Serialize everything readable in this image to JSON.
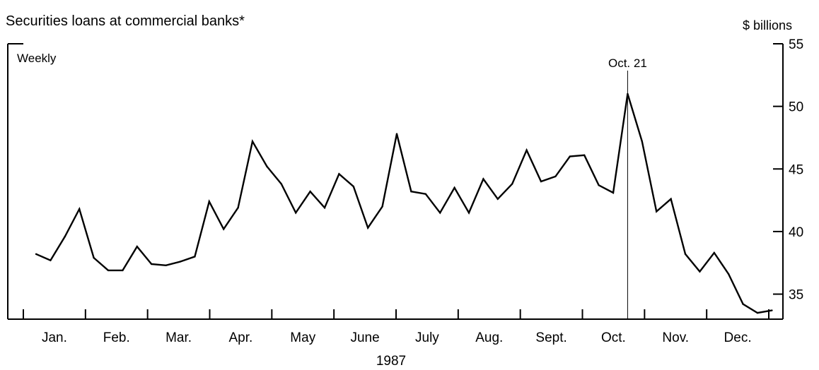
{
  "chart_data": {
    "type": "line",
    "title": "Securities loans at commercial banks*",
    "unit_label": "$ billions",
    "frequency_label": "Weekly",
    "xlabel": "1987",
    "ylabel": "",
    "ylim": [
      33,
      55
    ],
    "yticks": [
      35,
      40,
      45,
      50,
      55
    ],
    "months": [
      "Jan.",
      "Feb.",
      "Mar.",
      "Apr.",
      "May",
      "June",
      "July",
      "Aug.",
      "Sept.",
      "Oct.",
      "Nov.",
      "Dec."
    ],
    "annotation": {
      "label": "Oct. 21",
      "week": 42
    },
    "series": [
      {
        "values": [
          38.2,
          37.7,
          39.6,
          41.8,
          37.9,
          36.9,
          36.9,
          38.8,
          37.4,
          37.3,
          37.6,
          38.0,
          42.4,
          40.2,
          41.9,
          47.2,
          45.2,
          43.8,
          41.5,
          43.2,
          41.9,
          44.6,
          43.6,
          40.3,
          42.0,
          47.8,
          43.2,
          43.0,
          41.5,
          43.5,
          41.5,
          44.2,
          42.6,
          43.8,
          46.5,
          44.0,
          44.4,
          46.0,
          46.1,
          43.7,
          43.1,
          51.0,
          47.2,
          41.6,
          42.6,
          38.2,
          36.8,
          38.3,
          36.6,
          34.2,
          33.5,
          33.7
        ]
      }
    ]
  }
}
